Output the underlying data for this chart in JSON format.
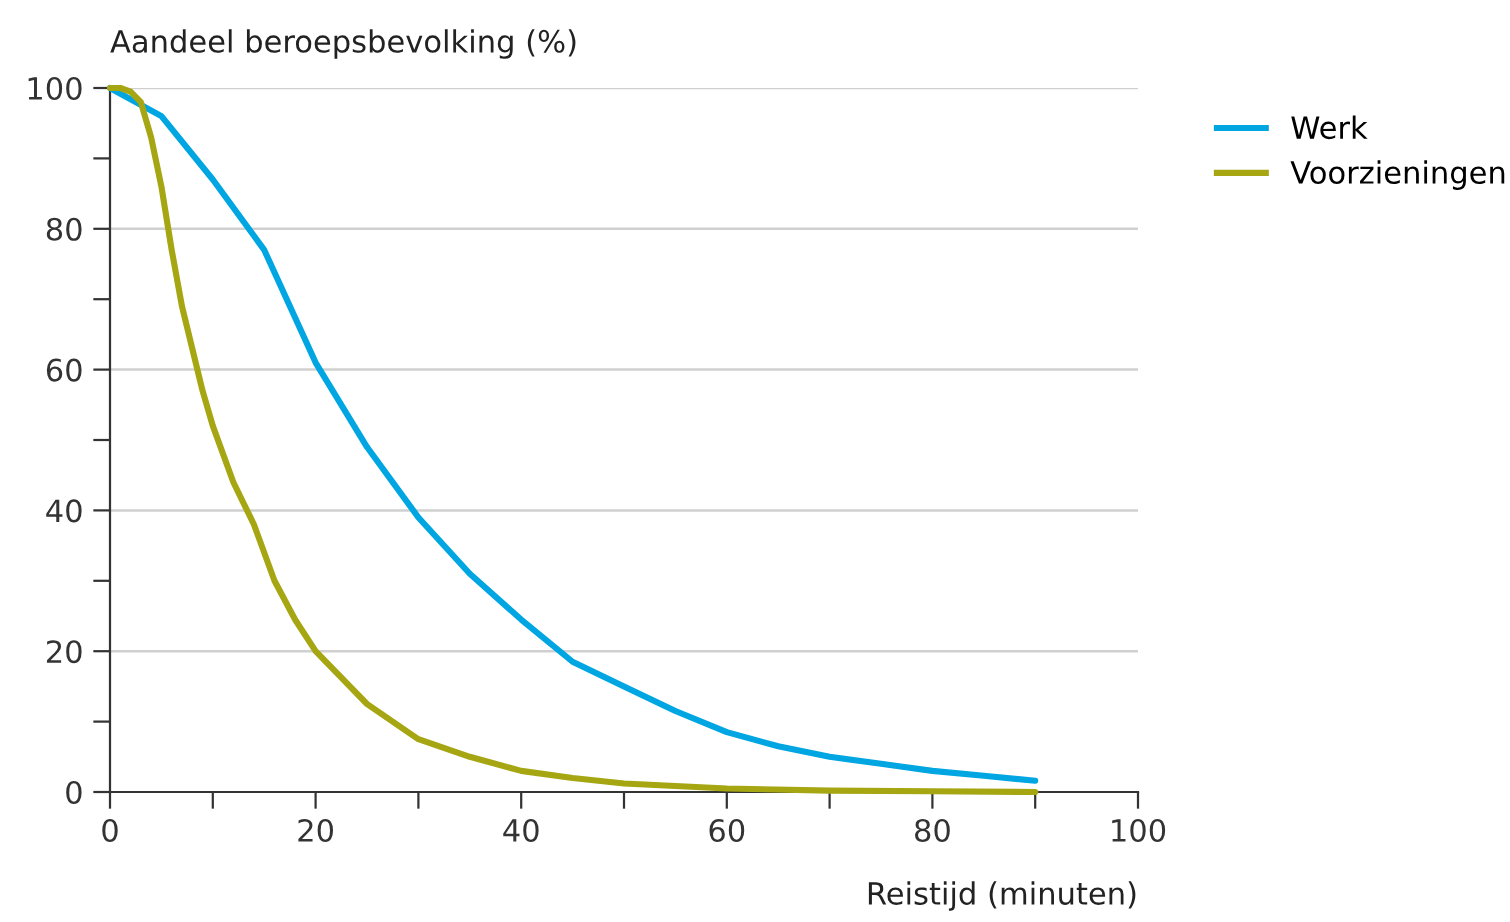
{
  "chart_data": {
    "type": "line",
    "ylabel": "Aandeel beroepsbevolking (%)",
    "xlabel": "Reistijd (minuten)",
    "xlim": [
      0,
      100
    ],
    "ylim": [
      0,
      100
    ],
    "xticks": [
      0,
      {
        "value": 10,
        "label": null
      },
      20,
      {
        "value": 30,
        "label": null
      },
      40,
      {
        "value": 50,
        "label": null
      },
      60,
      {
        "value": 70,
        "label": null
      },
      80,
      {
        "value": 90,
        "label": null
      },
      100
    ],
    "yticks": [
      0,
      {
        "value": 10,
        "label": null
      },
      20,
      {
        "value": 30,
        "label": null
      },
      40,
      {
        "value": 50,
        "label": null
      },
      60,
      {
        "value": 70,
        "label": null
      },
      80,
      {
        "value": 90,
        "label": null
      },
      100
    ],
    "grid": "y",
    "legend": "top right",
    "line_style": "solid",
    "marker": "none",
    "series": [
      {
        "name": "Werk",
        "color": "#00a6e2",
        "x": [
          0,
          5,
          10,
          15,
          20,
          25,
          30,
          35,
          40,
          45,
          50,
          55,
          60,
          65,
          70,
          75,
          80,
          85,
          90
        ],
        "values": [
          100,
          96,
          87,
          77,
          61,
          49,
          39,
          31,
          24.5,
          18.5,
          15,
          11.5,
          8.5,
          6.5,
          5,
          4,
          3,
          2.3,
          1.6
        ]
      },
      {
        "name": "Voorzieningen",
        "color": "#a5a612",
        "x": [
          0,
          1,
          2,
          3,
          4,
          5,
          6,
          7,
          8,
          9,
          10,
          12,
          14,
          16,
          18,
          20,
          25,
          30,
          35,
          40,
          45,
          50,
          60,
          70,
          80,
          90
        ],
        "values": [
          100,
          100,
          99.5,
          98,
          93,
          86,
          77,
          69,
          63,
          57,
          52,
          44,
          38,
          30,
          24.5,
          20,
          12.5,
          7.5,
          5,
          3,
          2,
          1.2,
          0.5,
          0.2,
          0.1,
          0
        ]
      }
    ]
  }
}
